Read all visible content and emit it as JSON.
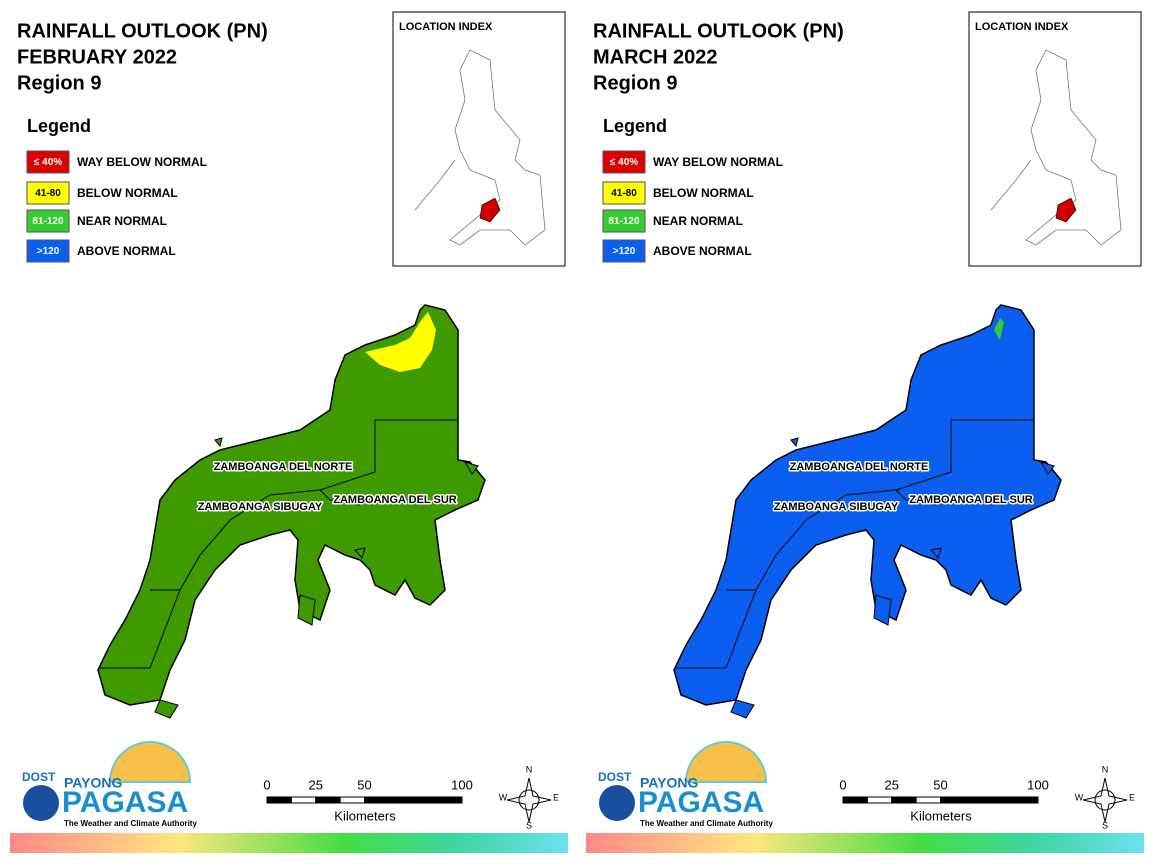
{
  "panels": [
    {
      "title": "RAINFALL OUTLOOK (PN)",
      "period": "FEBRUARY 2022",
      "region": "Region 9",
      "map_color": "#3f9a00",
      "patch_color": "#ffff00"
    },
    {
      "title": "RAINFALL OUTLOOK (PN)",
      "period": "MARCH 2022",
      "region": "Region 9",
      "map_color": "#0a5ff0",
      "patch_color": "#33cc33"
    }
  ],
  "legend": {
    "title": "Legend",
    "items": [
      {
        "swatch": "≤ 40%",
        "label": "WAY BELOW NORMAL",
        "color": "#dd0000",
        "text_color": "#ffffff"
      },
      {
        "swatch": "41-80",
        "label": "BELOW NORMAL",
        "color": "#ffff00",
        "text_color": "#000000"
      },
      {
        "swatch": "81-120",
        "label": "NEAR NORMAL",
        "color": "#33cc33",
        "text_color": "#ffffff"
      },
      {
        "swatch": ">120",
        "label": "ABOVE NORMAL",
        "color": "#0a5ff0",
        "text_color": "#ffffff"
      }
    ]
  },
  "inset": {
    "title": "LOCATION INDEX",
    "highlight_color": "#cc0000"
  },
  "provinces": [
    "ZAMBOANGA DEL NORTE",
    "ZAMBOANGA SIBUGAY",
    "ZAMBOANGA DEL SUR"
  ],
  "scale": {
    "ticks": [
      0,
      25,
      50,
      100
    ],
    "unit": "Kilometers"
  },
  "compass": [
    "N",
    "E",
    "S",
    "W"
  ],
  "logo": {
    "agency": "DOST",
    "brand_top": "PAYONG",
    "brand": "PAGASA",
    "tagline": "The Weather and Climate Authority"
  }
}
